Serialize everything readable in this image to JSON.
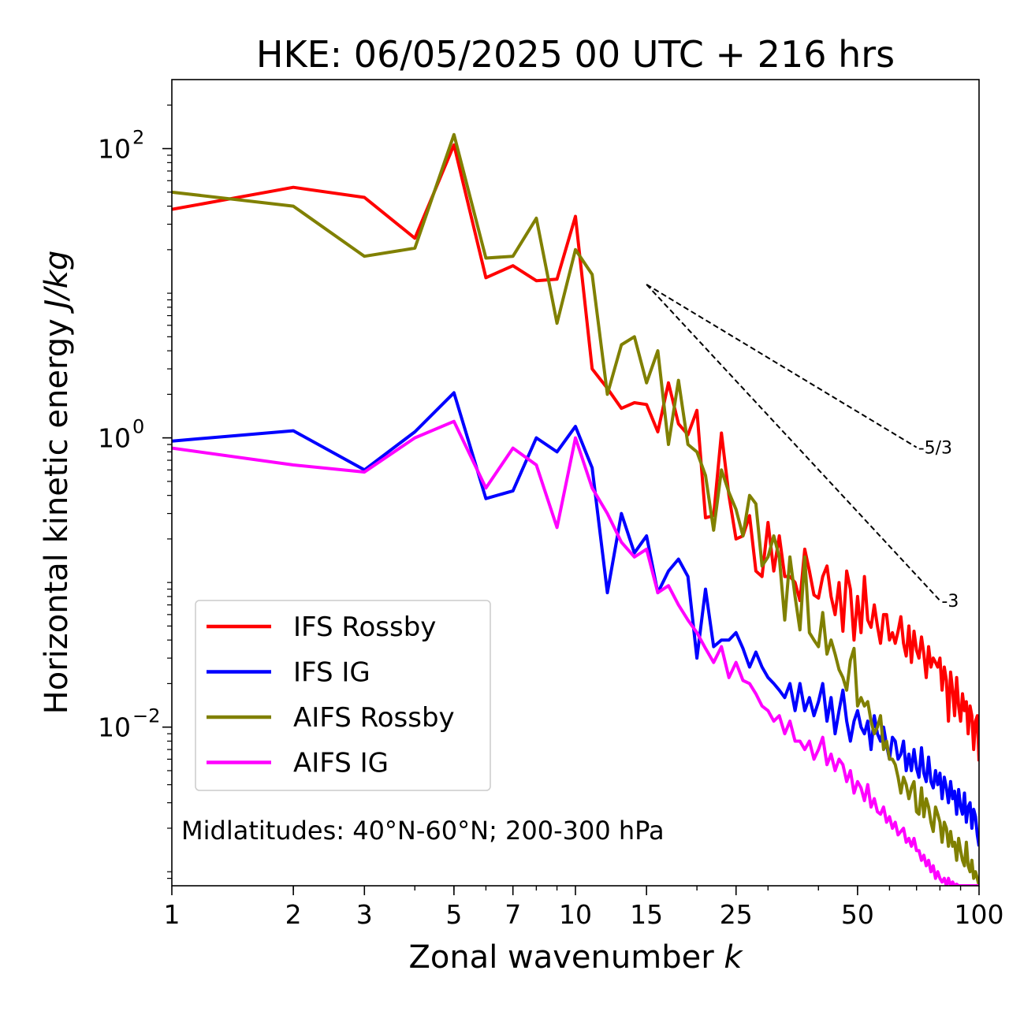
{
  "chart_data": {
    "type": "line",
    "title": "HKE: 06/05/2025 00 UTC + 216 hrs",
    "xlabel": "Zonal wavenumber",
    "xlabel_var": "k",
    "ylabel": "Horizontal kinetic energy",
    "ylabel_unit": "J/kg",
    "xscale": "log",
    "yscale": "log",
    "xlim": [
      1,
      100
    ],
    "ylim": [
      0.0008,
      300
    ],
    "grid": false,
    "legend_position": "lower-left",
    "x_ticks": [
      {
        "value": 1,
        "label": "1"
      },
      {
        "value": 2,
        "label": "2"
      },
      {
        "value": 3,
        "label": "3"
      },
      {
        "value": 5,
        "label": "5"
      },
      {
        "value": 7,
        "label": "7"
      },
      {
        "value": 10,
        "label": "10"
      },
      {
        "value": 15,
        "label": "15"
      },
      {
        "value": 25,
        "label": "25"
      },
      {
        "value": 50,
        "label": "50"
      },
      {
        "value": 100,
        "label": "100"
      }
    ],
    "y_ticks": [
      {
        "value": 100,
        "base": "10",
        "exp": "2"
      },
      {
        "value": 1,
        "base": "10",
        "exp": "0"
      },
      {
        "value": 0.01,
        "base": "10",
        "exp": "−2"
      }
    ],
    "annotation": "Midlatitudes: 40°N-60°N; 200-300 hPa",
    "reference_lines": [
      {
        "label": "-5/3",
        "x": [
          15,
          70
        ],
        "y": [
          11.5,
          0.86
        ]
      },
      {
        "label": "-3",
        "x": [
          15,
          80
        ],
        "y": [
          11.5,
          0.075
        ]
      }
    ],
    "x": [
      1,
      2,
      3,
      4,
      5,
      6,
      7,
      8,
      9,
      10,
      11,
      12,
      13,
      14,
      15,
      16,
      17,
      18,
      19,
      20,
      21,
      22,
      23,
      24,
      25,
      26,
      27,
      28,
      29,
      30,
      31,
      32,
      33,
      34,
      35,
      36,
      37,
      38,
      39,
      40,
      41,
      42,
      43,
      44,
      45,
      46,
      47,
      48,
      49,
      50,
      51,
      52,
      53,
      54,
      55,
      56,
      57,
      58,
      59,
      60,
      61,
      62,
      63,
      64,
      65,
      66,
      67,
      68,
      69,
      70,
      71,
      72,
      73,
      74,
      75,
      76,
      77,
      78,
      79,
      80,
      81,
      82,
      83,
      84,
      85,
      86,
      87,
      88,
      89,
      90,
      91,
      92,
      93,
      94,
      95,
      96,
      97,
      98,
      99,
      100
    ],
    "series": [
      {
        "name": "IFS Rossby",
        "color": "#ff0000",
        "values": [
          38,
          54,
          46,
          24,
          106,
          12.8,
          15.5,
          12.2,
          12.5,
          34,
          3.0,
          2.2,
          1.6,
          1.75,
          1.7,
          1.1,
          2.4,
          1.25,
          1.05,
          1.55,
          0.28,
          0.29,
          1.08,
          0.4,
          0.2,
          0.21,
          0.29,
          0.12,
          0.11,
          0.26,
          0.12,
          0.21,
          0.11,
          0.11,
          0.1,
          0.075,
          0.17,
          0.12,
          0.082,
          0.078,
          0.11,
          0.13,
          0.08,
          0.06,
          0.1,
          0.046,
          0.12,
          0.09,
          0.04,
          0.08,
          0.045,
          0.11,
          0.055,
          0.049,
          0.07,
          0.05,
          0.038,
          0.06,
          0.06,
          0.04,
          0.045,
          0.038,
          0.046,
          0.058,
          0.038,
          0.031,
          0.05,
          0.028,
          0.046,
          0.034,
          0.03,
          0.042,
          0.032,
          0.022,
          0.036,
          0.026,
          0.03,
          0.028,
          0.026,
          0.03,
          0.018,
          0.026,
          0.021,
          0.011,
          0.024,
          0.018,
          0.012,
          0.022,
          0.014,
          0.011,
          0.017,
          0.013,
          0.015,
          0.009,
          0.014,
          0.012,
          0.007,
          0.011,
          0.012,
          0.0058
        ]
      },
      {
        "name": "IFS IG",
        "color": "#0000ff",
        "values": [
          0.95,
          1.12,
          0.6,
          1.1,
          2.05,
          0.38,
          0.43,
          1.0,
          0.8,
          1.2,
          0.62,
          0.085,
          0.3,
          0.16,
          0.21,
          0.085,
          0.12,
          0.145,
          0.11,
          0.03,
          0.09,
          0.036,
          0.04,
          0.04,
          0.045,
          0.035,
          0.026,
          0.033,
          0.026,
          0.022,
          0.02,
          0.018,
          0.016,
          0.02,
          0.013,
          0.02,
          0.013,
          0.016,
          0.012,
          0.015,
          0.02,
          0.011,
          0.016,
          0.009,
          0.013,
          0.018,
          0.011,
          0.008,
          0.011,
          0.013,
          0.01,
          0.009,
          0.011,
          0.007,
          0.012,
          0.009,
          0.008,
          0.01,
          0.0075,
          0.006,
          0.0085,
          0.008,
          0.006,
          0.0065,
          0.008,
          0.005,
          0.0065,
          0.005,
          0.007,
          0.0052,
          0.0045,
          0.0072,
          0.0048,
          0.0042,
          0.0062,
          0.0042,
          0.0038,
          0.005,
          0.004,
          0.0048,
          0.0032,
          0.0045,
          0.0038,
          0.003,
          0.0042,
          0.0032,
          0.0036,
          0.0025,
          0.0037,
          0.0028,
          0.0025,
          0.0035,
          0.0022,
          0.0028,
          0.003,
          0.002,
          0.0027,
          0.0024,
          0.0018,
          0.0015
        ]
      },
      {
        "name": "AIFS Rossby",
        "color": "#808000",
        "values": [
          50,
          40,
          18,
          20.5,
          125,
          17.5,
          18,
          33,
          6.2,
          20,
          13.5,
          2.0,
          4.4,
          5.0,
          2.4,
          4.0,
          0.9,
          2.5,
          0.9,
          0.8,
          0.55,
          0.23,
          0.6,
          0.42,
          0.32,
          0.21,
          0.4,
          0.35,
          0.13,
          0.15,
          0.21,
          0.15,
          0.055,
          0.15,
          0.08,
          0.047,
          0.15,
          0.045,
          0.04,
          0.036,
          0.062,
          0.032,
          0.04,
          0.032,
          0.025,
          0.022,
          0.018,
          0.029,
          0.035,
          0.014,
          0.016,
          0.014,
          0.015,
          0.011,
          0.009,
          0.01,
          0.012,
          0.007,
          0.008,
          0.006,
          0.006,
          0.0055,
          0.0045,
          0.0035,
          0.0045,
          0.004,
          0.0032,
          0.0038,
          0.0042,
          0.0026,
          0.0025,
          0.0038,
          0.0024,
          0.0032,
          0.0028,
          0.0022,
          0.0019,
          0.0028,
          0.0025,
          0.0022,
          0.0016,
          0.0022,
          0.002,
          0.0015,
          0.0019,
          0.0015,
          0.0016,
          0.0012,
          0.0017,
          0.0014,
          0.0012,
          0.0011,
          0.0016,
          0.0011,
          0.001,
          0.0012,
          0.0009,
          0.001,
          0.0009,
          0.0008
        ]
      },
      {
        "name": "AIFS IG",
        "color": "#ff00ff",
        "values": [
          0.85,
          0.65,
          0.58,
          1.0,
          1.3,
          0.45,
          0.85,
          0.65,
          0.24,
          1.0,
          0.45,
          0.3,
          0.19,
          0.15,
          0.17,
          0.085,
          0.095,
          0.07,
          0.055,
          0.045,
          0.035,
          0.028,
          0.036,
          0.022,
          0.028,
          0.021,
          0.02,
          0.017,
          0.014,
          0.013,
          0.011,
          0.012,
          0.009,
          0.011,
          0.008,
          0.008,
          0.007,
          0.008,
          0.006,
          0.007,
          0.0085,
          0.0055,
          0.0065,
          0.005,
          0.006,
          0.0055,
          0.0042,
          0.005,
          0.0035,
          0.0042,
          0.0038,
          0.0031,
          0.004,
          0.0028,
          0.0032,
          0.0026,
          0.0025,
          0.0028,
          0.0022,
          0.0024,
          0.002,
          0.0022,
          0.0018,
          0.0019,
          0.002,
          0.0016,
          0.0017,
          0.0015,
          0.0017,
          0.0014,
          0.0014,
          0.0012,
          0.0013,
          0.0011,
          0.0012,
          0.001,
          0.0011,
          0.0009,
          0.001,
          0.0009,
          0.00085,
          0.0009,
          0.0008,
          0.0009,
          0.0008,
          0.00085,
          0.0008,
          0.00082,
          0.0008,
          0.0008,
          0.0008,
          0.0008,
          0.0008,
          0.0008,
          0.0008,
          0.0008,
          0.0008,
          0.0008,
          0.0008,
          0.0008
        ]
      }
    ]
  }
}
